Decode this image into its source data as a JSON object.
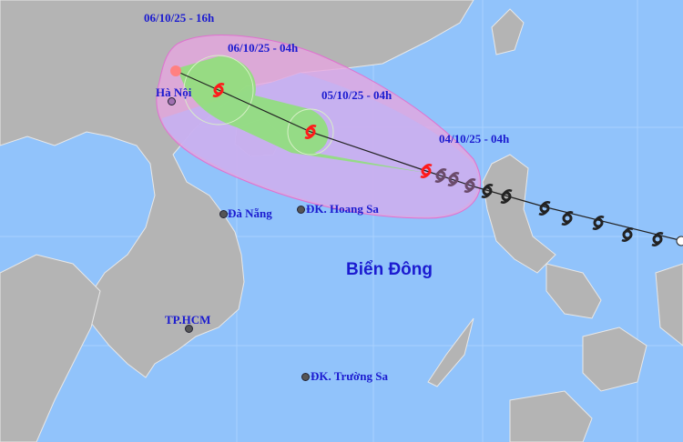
{
  "map": {
    "sea_label": "Biển Đông",
    "forecast_labels": [
      "06/10/25 - 16h",
      "06/10/25 - 04h",
      "05/10/25 - 04h",
      "04/10/25 - 04h"
    ],
    "places": [
      "Hà Nội",
      "Đà Nẵng",
      "ĐK. Hoang Sa",
      "TP.HCM",
      "ĐK. Trường Sa"
    ],
    "colors": {
      "sea": "#91c3fb",
      "land": "#b4b4b4",
      "risk_zone": "#e6a6e0",
      "wind_zone": "#c4b2f2",
      "cone": "#8fe07a",
      "storm": "#ff1a1a",
      "past_track": "#222222"
    }
  }
}
